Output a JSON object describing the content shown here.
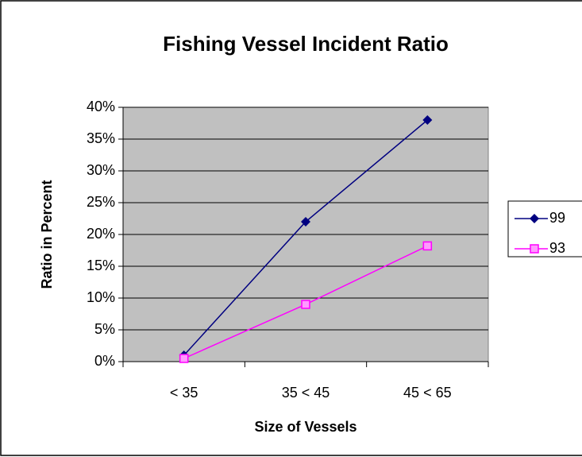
{
  "chart_data": {
    "type": "line",
    "title": "Fishing Vessel Incident Ratio",
    "x_label": "Size of Vessels",
    "y_label": "Ratio in Percent",
    "categories": [
      "< 35",
      "35 < 45",
      "45 < 65"
    ],
    "series": [
      {
        "name": "99",
        "color": "#000080",
        "marker": "diamond",
        "values": [
          1,
          22,
          38
        ]
      },
      {
        "name": "93",
        "color": "#ff00ff",
        "marker": "square",
        "values": [
          0.5,
          9,
          18.2
        ]
      }
    ],
    "ylim": [
      0,
      40
    ],
    "yticks": [
      {
        "value": 0,
        "label": "0%"
      },
      {
        "value": 5,
        "label": "5%"
      },
      {
        "value": 10,
        "label": "10%"
      },
      {
        "value": 15,
        "label": "15%"
      },
      {
        "value": 20,
        "label": "20%"
      },
      {
        "value": 25,
        "label": "25%"
      },
      {
        "value": 30,
        "label": "30%"
      },
      {
        "value": 35,
        "label": "35%"
      },
      {
        "value": 40,
        "label": "40%"
      }
    ],
    "grid": true,
    "legend": "right",
    "plot_background": "#c0c0c0"
  }
}
